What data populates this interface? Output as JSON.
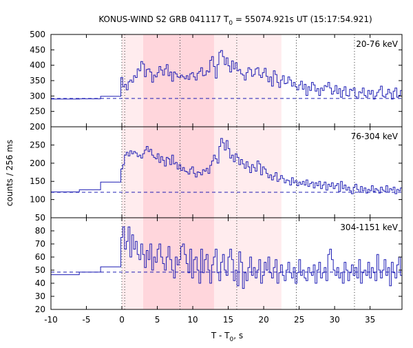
{
  "chart_data": {
    "type": "line",
    "title": {
      "prefix": "KONUS-WIND S2 GRB 041117 T",
      "sub": "0",
      "suffix": " = 55074.921s UT (15:17:54.921)"
    },
    "xlabel": {
      "prefix": "T - T",
      "sub": "0",
      "suffix": ", s"
    },
    "ylabel": "counts / 256 ms",
    "xlim": [
      -10,
      39.5
    ],
    "x_ticks": [
      -10,
      -5,
      0,
      5,
      10,
      15,
      20,
      25,
      30,
      35
    ],
    "x_tick_labels": [
      "-10",
      "-5",
      "0",
      "5",
      "10",
      "15",
      "20",
      "25",
      "30",
      "35"
    ],
    "interval_shading": [
      {
        "from": 3.0,
        "to": 13.0,
        "color": "#ffd6dc"
      },
      {
        "from": 0.0,
        "to": 3.0,
        "color": "#ffecee"
      },
      {
        "from": 13.0,
        "to": 22.5,
        "color": "#ffecee"
      }
    ],
    "dotted_lines_x": [
      0.0,
      0.4,
      8.2,
      16.2,
      24.6,
      32.8
    ],
    "line_color": "#1c1cb4",
    "panels": [
      {
        "label": "20-76 keV",
        "ylim": [
          200,
          500
        ],
        "y_ticks": [
          200,
          250,
          300,
          350,
          400,
          450,
          500
        ],
        "background_level": 292,
        "pre_trigger_steps": [
          {
            "from": -10.0,
            "to": -6.0,
            "value": 290
          },
          {
            "from": -6.0,
            "to": -3.0,
            "value": 291
          },
          {
            "from": -3.0,
            "to": -0.4,
            "value": 299
          }
        ],
        "start": -0.4,
        "bin_width": 0.256,
        "values": [
          299,
          360,
          330,
          338,
          320,
          346,
          352,
          345,
          366,
          360,
          388,
          382,
          412,
          404,
          363,
          386,
          388,
          378,
          345,
          368,
          362,
          376,
          396,
          384,
          368,
          388,
          402,
          366,
          378,
          348,
          378,
          372,
          362,
          360,
          368,
          362,
          356,
          366,
          354,
          372,
          376,
          362,
          352,
          374,
          380,
          392,
          366,
          368,
          382,
          378,
          416,
          428,
          396,
          358,
          402,
          442,
          448,
          428,
          402,
          424,
          398,
          378,
          414,
          388,
          408,
          382,
          386,
          372,
          368,
          352,
          376,
          392,
          386,
          364,
          370,
          388,
          392,
          368,
          360,
          376,
          390,
          364,
          346,
          362,
          332,
          382,
          370,
          344,
          328,
          352,
          366,
          340,
          342,
          362,
          352,
          332,
          344,
          330,
          320,
          336,
          348,
          322,
          338,
          302,
          330,
          318,
          344,
          336,
          316,
          324,
          302,
          326,
          318,
          334,
          330,
          344,
          326,
          306,
          316,
          334,
          308,
          324,
          296,
          318,
          330,
          302,
          300,
          322,
          318,
          326,
          298,
          292,
          314,
          310,
          326,
          302,
          296,
          318,
          306,
          318,
          290,
          300,
          312,
          320,
          332,
          300,
          296,
          306,
          322,
          310,
          290,
          316,
          326,
          296,
          302,
          318,
          300,
          308,
          314,
          290,
          306,
          296,
          318,
          304,
          276,
          316,
          298,
          310,
          300,
          322,
          302,
          288,
          312,
          304,
          296,
          318,
          300,
          310,
          292,
          302,
          318,
          290,
          304,
          316,
          300,
          312,
          296,
          306,
          284,
          312,
          308,
          296,
          320,
          302,
          298,
          310,
          304,
          292,
          318,
          300,
          316,
          308,
          300,
          296
        ]
      },
      {
        "label": "76-304 keV",
        "ylim": [
          50,
          300
        ],
        "y_ticks": [
          50,
          100,
          150,
          200,
          250
        ],
        "background_level": 120,
        "pre_trigger_steps": [
          {
            "from": -10.0,
            "to": -6.0,
            "value": 121
          },
          {
            "from": -6.0,
            "to": -3.0,
            "value": 127
          },
          {
            "from": -3.0,
            "to": -0.4,
            "value": 148
          }
        ],
        "start": -0.4,
        "bin_width": 0.256,
        "values": [
          148,
          184,
          196,
          222,
          230,
          220,
          234,
          226,
          232,
          228,
          218,
          222,
          214,
          226,
          236,
          246,
          232,
          238,
          222,
          216,
          212,
          226,
          202,
          218,
          208,
          192,
          216,
          212,
          196,
          222,
          198,
          202,
          184,
          196,
          180,
          188,
          178,
          176,
          170,
          184,
          190,
          172,
          162,
          176,
          174,
          168,
          182,
          178,
          186,
          172,
          194,
          206,
          222,
          212,
          200,
          246,
          268,
          256,
          236,
          262,
          240,
          214,
          222,
          204,
          226,
          216,
          196,
          210,
          198,
          186,
          204,
          190,
          174,
          196,
          188,
          178,
          206,
          198,
          168,
          190,
          184,
          172,
          160,
          168,
          154,
          164,
          174,
          150,
          156,
          166,
          158,
          146,
          154,
          152,
          140,
          160,
          146,
          152,
          138,
          148,
          142,
          150,
          140,
          154,
          136,
          144,
          148,
          132,
          146,
          138,
          150,
          130,
          140,
          148,
          126,
          142,
          136,
          146,
          130,
          138,
          144,
          122,
          150,
          130,
          140,
          126,
          134,
          124,
          116,
          134,
          142,
          128,
          120,
          136,
          124,
          132,
          118,
          128,
          124,
          138,
          122,
          130,
          126,
          118,
          134,
          126,
          122,
          138,
          120,
          130,
          126,
          134,
          116,
          128,
          124,
          132,
          120,
          126,
          118,
          130,
          124,
          136,
          122,
          128,
          118,
          126,
          132,
          120,
          126,
          122,
          130,
          124,
          118,
          128,
          120,
          132,
          126,
          122,
          116,
          128,
          124,
          130,
          120,
          126,
          122,
          128,
          118,
          126,
          124,
          120,
          128,
          122,
          126,
          118,
          124,
          128,
          122,
          126,
          120,
          124,
          118,
          126,
          122,
          120
        ]
      },
      {
        "label": "304-1151 keV",
        "ylim": [
          20,
          90
        ],
        "y_ticks": [
          20,
          30,
          40,
          50,
          60,
          70,
          80
        ],
        "background_level": 48.5,
        "pre_trigger_steps": [
          {
            "from": -10.0,
            "to": -6.0,
            "value": 46.5
          },
          {
            "from": -6.0,
            "to": -3.0,
            "value": 48.5
          },
          {
            "from": -3.0,
            "to": -0.4,
            "value": 52.5
          }
        ],
        "start": -0.4,
        "bin_width": 0.256,
        "values": [
          52.5,
          75,
          83,
          66,
          72,
          83,
          60,
          77,
          66,
          72,
          62,
          58,
          70,
          62,
          52,
          65,
          58,
          70,
          50,
          60,
          56,
          66,
          70,
          60,
          55,
          50,
          60,
          68,
          58,
          50,
          44,
          60,
          54,
          58,
          68,
          70,
          62,
          55,
          48,
          66,
          44,
          58,
          60,
          50,
          40,
          66,
          48,
          58,
          62,
          50,
          40,
          54,
          60,
          66,
          48,
          42,
          56,
          62,
          50,
          46,
          60,
          66,
          58,
          42,
          50,
          38,
          64,
          56,
          36,
          48,
          42,
          52,
          60,
          46,
          52,
          44,
          50,
          58,
          40,
          46,
          56,
          50,
          60,
          48,
          44,
          52,
          58,
          40,
          48,
          54,
          46,
          42,
          50,
          56,
          48,
          44,
          52,
          40,
          48,
          58,
          46,
          50,
          44,
          42,
          52,
          48,
          46,
          54,
          40,
          50,
          56,
          44,
          48,
          52,
          42,
          62,
          66,
          58,
          50,
          46,
          52,
          44,
          48,
          40,
          56,
          50,
          42,
          48,
          54,
          46,
          52,
          44,
          58,
          40,
          48,
          50,
          46,
          56,
          44,
          52,
          48,
          42,
          62,
          50,
          44,
          50,
          58,
          46,
          52,
          38,
          56,
          48,
          44,
          54,
          60,
          46,
          50,
          42,
          52,
          48,
          56,
          44,
          50,
          66,
          46,
          52,
          40,
          50,
          56,
          42,
          48,
          54,
          46,
          52,
          58,
          44,
          50,
          46,
          52,
          40,
          56,
          48,
          44,
          60,
          50,
          46,
          52,
          48,
          42,
          56,
          50,
          46,
          54,
          44,
          50,
          48,
          58,
          46,
          52,
          44,
          50,
          48,
          46,
          52
        ]
      }
    ]
  }
}
